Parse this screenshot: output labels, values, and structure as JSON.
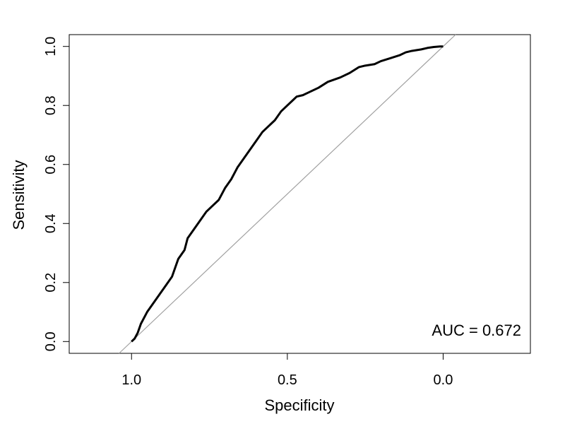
{
  "chart_data": {
    "type": "line",
    "title": "",
    "xlabel": "Specificity",
    "ylabel": "Sensitivity",
    "xlim": [
      1.2,
      -0.28
    ],
    "ylim": [
      -0.04,
      1.04
    ],
    "x_ticks": [
      1.0,
      0.5,
      0.0
    ],
    "x_tick_labels": [
      "1.0",
      "0.5",
      "0.0"
    ],
    "y_ticks": [
      0.0,
      0.2,
      0.4,
      0.6,
      0.8,
      1.0
    ],
    "y_tick_labels": [
      "0.0",
      "0.2",
      "0.4",
      "0.6",
      "0.8",
      "1.0"
    ],
    "grid": false,
    "annotation": "AUC = 0.672",
    "reference_line": {
      "specificity": [
        1.0,
        0.0
      ],
      "sensitivity": [
        0.0,
        1.0
      ],
      "color": "#a0a0a0"
    },
    "series": [
      {
        "color": "#000000",
        "specificity": [
          1.0,
          0.99,
          0.98,
          0.97,
          0.95,
          0.93,
          0.91,
          0.89,
          0.87,
          0.86,
          0.85,
          0.83,
          0.82,
          0.8,
          0.78,
          0.76,
          0.74,
          0.72,
          0.7,
          0.68,
          0.66,
          0.64,
          0.62,
          0.6,
          0.58,
          0.56,
          0.54,
          0.52,
          0.5,
          0.48,
          0.47,
          0.45,
          0.43,
          0.4,
          0.37,
          0.33,
          0.3,
          0.27,
          0.25,
          0.22,
          0.2,
          0.17,
          0.14,
          0.12,
          0.1,
          0.07,
          0.05,
          0.03,
          0.01,
          0.0
        ],
        "sensitivity": [
          0.0,
          0.01,
          0.03,
          0.06,
          0.1,
          0.13,
          0.16,
          0.19,
          0.22,
          0.25,
          0.28,
          0.31,
          0.35,
          0.38,
          0.41,
          0.44,
          0.46,
          0.48,
          0.52,
          0.55,
          0.59,
          0.62,
          0.65,
          0.68,
          0.71,
          0.73,
          0.75,
          0.78,
          0.8,
          0.82,
          0.83,
          0.835,
          0.845,
          0.86,
          0.88,
          0.895,
          0.91,
          0.93,
          0.935,
          0.94,
          0.95,
          0.96,
          0.97,
          0.98,
          0.985,
          0.99,
          0.995,
          0.998,
          1.0,
          1.0
        ]
      }
    ]
  }
}
